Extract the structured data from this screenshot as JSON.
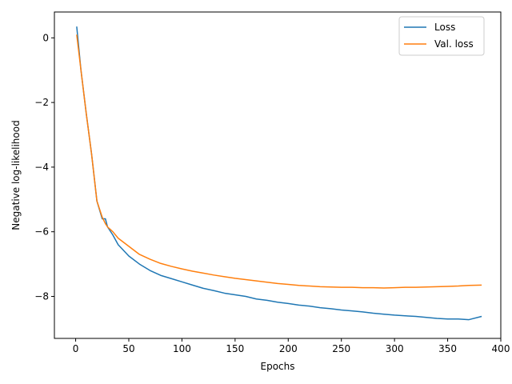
{
  "chart_data": {
    "type": "line",
    "title": "",
    "xlabel": "Epochs",
    "ylabel": "Negative log-likelihood",
    "xlim": [
      -20,
      400
    ],
    "ylim": [
      -9.3,
      0.8
    ],
    "xticks": [
      0,
      50,
      100,
      150,
      200,
      250,
      300,
      350,
      400
    ],
    "yticks": [
      0,
      -2,
      -4,
      -6,
      -8
    ],
    "xtick_labels": [
      "0",
      "50",
      "100",
      "150",
      "200",
      "250",
      "300",
      "350",
      "400"
    ],
    "ytick_labels": [
      "0",
      "−2",
      "−4",
      "−6",
      "−8"
    ],
    "grid": false,
    "legend_position": "top-right",
    "series": [
      {
        "name": "Loss",
        "color": "#1f77b4",
        "x": [
          1,
          5,
          10,
          15,
          20,
          25,
          28,
          30,
          35,
          40,
          50,
          60,
          70,
          80,
          90,
          100,
          110,
          120,
          130,
          140,
          150,
          160,
          170,
          180,
          190,
          200,
          210,
          220,
          230,
          240,
          250,
          260,
          270,
          280,
          290,
          300,
          310,
          320,
          330,
          340,
          350,
          360,
          370,
          382
        ],
        "y": [
          0.35,
          -1.0,
          -2.35,
          -3.6,
          -5.05,
          -5.6,
          -5.6,
          -5.85,
          -6.1,
          -6.4,
          -6.75,
          -7.0,
          -7.2,
          -7.35,
          -7.45,
          -7.55,
          -7.65,
          -7.75,
          -7.82,
          -7.9,
          -7.95,
          -8.0,
          -8.08,
          -8.12,
          -8.18,
          -8.22,
          -8.27,
          -8.3,
          -8.35,
          -8.38,
          -8.42,
          -8.45,
          -8.48,
          -8.52,
          -8.55,
          -8.58,
          -8.6,
          -8.62,
          -8.65,
          -8.68,
          -8.7,
          -8.7,
          -8.72,
          -8.62
        ]
      },
      {
        "name": "Val. loss",
        "color": "#ff7f0e",
        "x": [
          1,
          5,
          10,
          15,
          20,
          25,
          28,
          30,
          35,
          40,
          50,
          60,
          70,
          80,
          90,
          100,
          110,
          120,
          130,
          140,
          150,
          160,
          170,
          180,
          190,
          200,
          210,
          220,
          230,
          240,
          250,
          260,
          270,
          280,
          290,
          300,
          310,
          320,
          330,
          340,
          350,
          360,
          370,
          382
        ],
        "y": [
          0.1,
          -1.0,
          -2.35,
          -3.6,
          -5.05,
          -5.55,
          -5.75,
          -5.85,
          -6.0,
          -6.2,
          -6.45,
          -6.7,
          -6.85,
          -6.98,
          -7.07,
          -7.15,
          -7.22,
          -7.28,
          -7.34,
          -7.39,
          -7.44,
          -7.48,
          -7.52,
          -7.56,
          -7.6,
          -7.63,
          -7.66,
          -7.68,
          -7.7,
          -7.71,
          -7.72,
          -7.72,
          -7.73,
          -7.73,
          -7.74,
          -7.73,
          -7.72,
          -7.72,
          -7.71,
          -7.7,
          -7.69,
          -7.68,
          -7.66,
          -7.65
        ]
      }
    ]
  }
}
